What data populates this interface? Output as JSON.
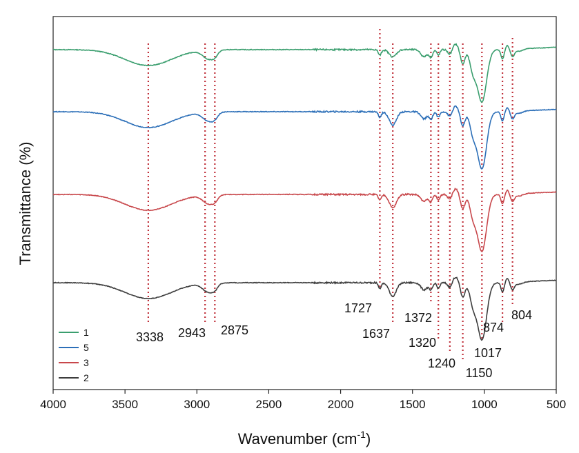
{
  "chart_data": {
    "type": "line",
    "xlabel": "Wavenumber (cm",
    "xlabel_sup": "-1",
    "xlabel_end": ")",
    "ylabel": "Transmittance (%)",
    "xlim": [
      4000,
      500
    ],
    "x_reversed": true,
    "xticks": [
      "4000",
      "3500",
      "3000",
      "2500",
      "2000",
      "1500",
      "1000",
      "500"
    ],
    "xtick_values": [
      4000,
      3500,
      3000,
      2500,
      2000,
      1500,
      1000,
      500
    ],
    "y_ticks_shown": false,
    "grid": false,
    "legend_position": "bottom-left",
    "legend": [
      {
        "label": "1",
        "color": "#3a9e6e"
      },
      {
        "label": "5",
        "color": "#2c6fb8"
      },
      {
        "label": "3",
        "color": "#c8474b"
      },
      {
        "label": "2",
        "color": "#3d3d3d"
      }
    ],
    "series": [
      {
        "name": "1",
        "color": "#3a9e6e",
        "offset": 3.0
      },
      {
        "name": "5",
        "color": "#2c6fb8",
        "offset": 2.0
      },
      {
        "name": "3",
        "color": "#c8474b",
        "offset": 1.0
      },
      {
        "name": "2",
        "color": "#3d3d3d",
        "offset": 0.0
      }
    ],
    "peaks": [
      {
        "x": 3338,
        "label": "3338"
      },
      {
        "x": 2943,
        "label": "2943"
      },
      {
        "x": 2875,
        "label": "2875"
      },
      {
        "x": 1727,
        "label": "1727"
      },
      {
        "x": 1637,
        "label": "1637"
      },
      {
        "x": 1372,
        "label": "1372"
      },
      {
        "x": 1320,
        "label": "1320"
      },
      {
        "x": 1240,
        "label": "1240"
      },
      {
        "x": 1150,
        "label": "1150"
      },
      {
        "x": 1017,
        "label": "1017"
      },
      {
        "x": 874,
        "label": "874"
      },
      {
        "x": 804,
        "label": "804"
      }
    ],
    "guide_line_color": "#c0303a"
  }
}
